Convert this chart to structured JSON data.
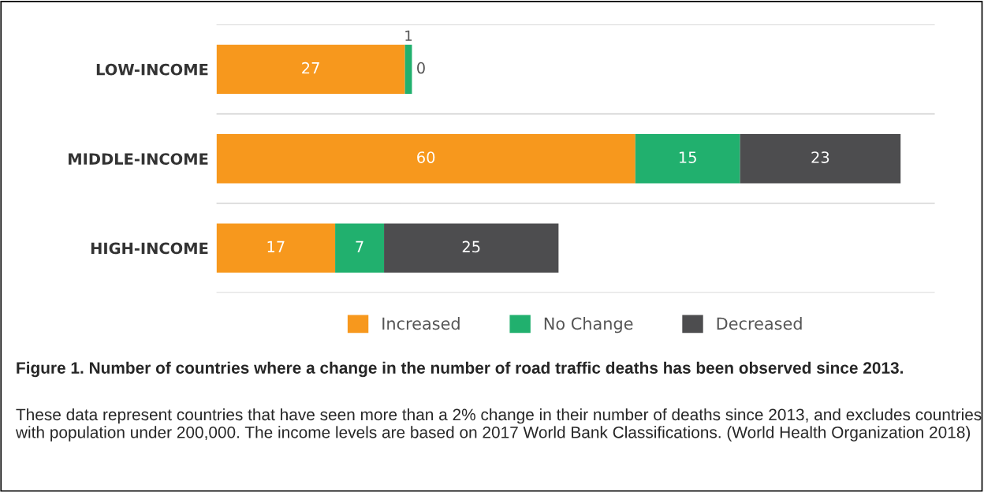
{
  "chart_data": {
    "type": "bar",
    "orientation": "horizontal",
    "stacked": true,
    "title": "Figure 1. Number of countries where a change in the number of road traffic deaths has been observed since 2013.",
    "annotations": [
      "These data represent countries that have seen more than a 2% change in their number of deaths since 2013, and excludes countries with population under 200,000. The income levels are based on 2017 World Bank Classifications. (World Health Organization 2018)"
    ],
    "categories": [
      "LOW-INCOME",
      "MIDDLE-INCOME",
      "HIGH-INCOME"
    ],
    "series": [
      {
        "name": "Increased",
        "color": "#f7981d",
        "values": [
          27,
          60,
          17
        ]
      },
      {
        "name": "No Change",
        "color": "#21b06e",
        "values": [
          1,
          15,
          7
        ]
      },
      {
        "name": "Decreased",
        "color": "#4d4d4f",
        "values": [
          0,
          23,
          25
        ]
      }
    ],
    "data_labels": true,
    "legend": "bottom",
    "tick_labels": "y"
  }
}
